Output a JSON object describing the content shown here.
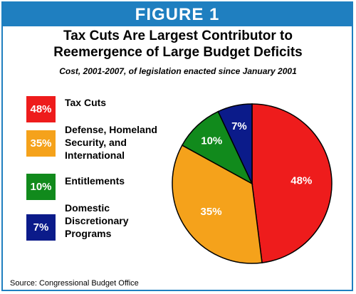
{
  "banner": "FIGURE 1",
  "title_line1": "Tax Cuts Are Largest Contributor to",
  "title_line2": "Reemergence of Large Budget Deficits",
  "subtitle": "Cost, 2001-2007, of legislation enacted since January 2001",
  "source": "Source: Congressional Budget Office",
  "chart_data": {
    "type": "pie",
    "title": "Tax Cuts Are Largest Contributor to Reemergence of Large Budget Deficits",
    "subtitle": "Cost, 2001-2007, of legislation enacted since January 2001",
    "slices": [
      {
        "label": "Tax Cuts",
        "value": 48,
        "value_label": "48%",
        "color": "#ee1c1c"
      },
      {
        "label": "Defense, Homeland\nSecurity, and\nInternational",
        "value": 35,
        "value_label": "35%",
        "color": "#f5a21b"
      },
      {
        "label": "Entitlements",
        "value": 10,
        "value_label": "10%",
        "color": "#118a1c"
      },
      {
        "label": "Domestic\nDiscretionary\nPrograms",
        "value": 7,
        "value_label": "7%",
        "color": "#0b1b8a"
      }
    ],
    "legend_position": "left"
  }
}
